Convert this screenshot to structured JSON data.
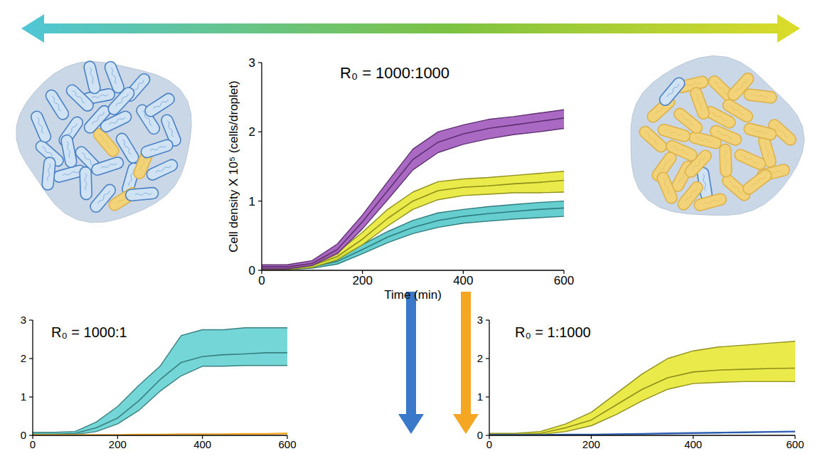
{
  "chart_data": [
    {
      "type": "line",
      "annotation": "R₀ = 1000:1000",
      "xlabel": "Time (min)",
      "ylabel": "Cell density X 10⁵ (cells/droplet)",
      "x": [
        0,
        50,
        100,
        150,
        200,
        250,
        300,
        350,
        400,
        450,
        500,
        550,
        600
      ],
      "xlim": [
        0,
        600
      ],
      "xticks": [
        0,
        200,
        400,
        600
      ],
      "ylim": [
        0,
        3
      ],
      "yticks": [
        0,
        1,
        2,
        3
      ],
      "series": [
        {
          "color": "#4cc6c8",
          "values": [
            0.03,
            0.03,
            0.05,
            0.13,
            0.3,
            0.48,
            0.62,
            0.72,
            0.78,
            0.82,
            0.85,
            0.88,
            0.9
          ],
          "upper": [
            0.05,
            0.05,
            0.08,
            0.18,
            0.37,
            0.56,
            0.72,
            0.83,
            0.88,
            0.92,
            0.95,
            0.98,
            1.0
          ],
          "lower": [
            0.01,
            0.01,
            0.03,
            0.09,
            0.24,
            0.4,
            0.53,
            0.62,
            0.68,
            0.71,
            0.74,
            0.76,
            0.78
          ]
        },
        {
          "color": "#e6e62c",
          "values": [
            0.03,
            0.03,
            0.07,
            0.2,
            0.45,
            0.75,
            1.0,
            1.15,
            1.2,
            1.22,
            1.25,
            1.27,
            1.3
          ],
          "upper": [
            0.05,
            0.05,
            0.1,
            0.26,
            0.55,
            0.88,
            1.13,
            1.28,
            1.32,
            1.34,
            1.37,
            1.4,
            1.43
          ],
          "lower": [
            0.01,
            0.01,
            0.04,
            0.15,
            0.37,
            0.64,
            0.88,
            1.02,
            1.08,
            1.1,
            1.12,
            1.12,
            1.13
          ]
        },
        {
          "color": "#9b4fb8",
          "values": [
            0.05,
            0.05,
            0.1,
            0.3,
            0.7,
            1.15,
            1.6,
            1.85,
            1.97,
            2.05,
            2.1,
            2.15,
            2.2
          ],
          "upper": [
            0.08,
            0.08,
            0.14,
            0.38,
            0.8,
            1.28,
            1.75,
            2.0,
            2.1,
            2.18,
            2.22,
            2.27,
            2.32
          ],
          "lower": [
            0.02,
            0.02,
            0.07,
            0.24,
            0.6,
            1.02,
            1.45,
            1.7,
            1.82,
            1.9,
            1.96,
            2.0,
            2.05
          ]
        }
      ]
    },
    {
      "type": "line",
      "annotation": "R₀ = 1000:1",
      "x": [
        0,
        50,
        100,
        150,
        200,
        250,
        300,
        350,
        400,
        450,
        500,
        550,
        600
      ],
      "xlim": [
        0,
        600
      ],
      "xticks": [
        0,
        200,
        400,
        600
      ],
      "ylim": [
        0,
        3
      ],
      "yticks": [
        0,
        1,
        2,
        3
      ],
      "series": [
        {
          "color": "#5ccfcf",
          "values": [
            0.03,
            0.03,
            0.05,
            0.2,
            0.45,
            0.9,
            1.45,
            1.9,
            2.05,
            2.1,
            2.12,
            2.15,
            2.15
          ],
          "upper": [
            0.08,
            0.08,
            0.1,
            0.35,
            0.75,
            1.3,
            1.8,
            2.6,
            2.75,
            2.75,
            2.8,
            2.8,
            2.8
          ],
          "lower": [
            0,
            0,
            0.02,
            0.1,
            0.3,
            0.65,
            1.15,
            1.55,
            1.8,
            1.8,
            1.82,
            1.82,
            1.82
          ]
        },
        {
          "color": "#f5a623",
          "values": [
            0.01,
            0.01,
            0.01,
            0.01,
            0.01,
            0.02,
            0.02,
            0.03,
            0.03,
            0.03,
            0.04,
            0.04,
            0.05
          ]
        }
      ]
    },
    {
      "type": "line",
      "annotation": "R₀ = 1:1000",
      "x": [
        0,
        50,
        100,
        150,
        200,
        250,
        300,
        350,
        400,
        450,
        500,
        550,
        600
      ],
      "xlim": [
        0,
        600
      ],
      "xticks": [
        0,
        200,
        400,
        600
      ],
      "ylim": [
        0,
        3
      ],
      "yticks": [
        0,
        1,
        2,
        3
      ],
      "series": [
        {
          "color": "#e6e62c",
          "values": [
            0.02,
            0.02,
            0.05,
            0.2,
            0.4,
            0.8,
            1.2,
            1.5,
            1.65,
            1.7,
            1.72,
            1.74,
            1.75
          ],
          "upper": [
            0.05,
            0.05,
            0.1,
            0.3,
            0.6,
            1.1,
            1.6,
            2.0,
            2.2,
            2.3,
            2.35,
            2.4,
            2.45
          ],
          "lower": [
            0,
            0,
            0.02,
            0.1,
            0.25,
            0.55,
            0.9,
            1.2,
            1.35,
            1.38,
            1.4,
            1.4,
            1.4
          ]
        },
        {
          "color": "#2a5db0",
          "values": [
            0.01,
            0.01,
            0.01,
            0.02,
            0.02,
            0.03,
            0.04,
            0.05,
            0.06,
            0.07,
            0.08,
            0.09,
            0.1
          ]
        }
      ]
    }
  ]
}
